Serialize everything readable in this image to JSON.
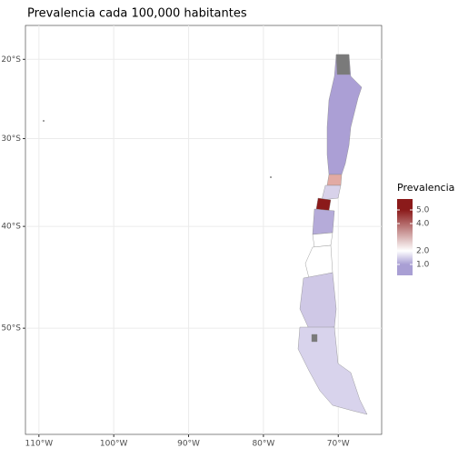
{
  "map": {
    "title": "Prevalencia cada 100,000 habitantes",
    "xlim": [
      -111.8,
      -64.2
    ],
    "ylim": [
      -15.5,
      -58.6
    ],
    "xticks": [
      {
        "value": -110,
        "label": "110°W"
      },
      {
        "value": -100,
        "label": "100°W"
      },
      {
        "value": -90,
        "label": "90°W"
      },
      {
        "value": -80,
        "label": "80°W"
      },
      {
        "value": -70,
        "label": "70°W"
      }
    ],
    "yticks": [
      {
        "value": -20,
        "label": "20°S"
      },
      {
        "value": -30,
        "label": "30°S"
      },
      {
        "value": -40,
        "label": "40°S"
      },
      {
        "value": -50,
        "label": "50°S"
      }
    ],
    "grid": true,
    "legend": {
      "title": "Prevalencia",
      "lim": [
        0.2,
        5.8
      ],
      "ticks": [
        {
          "value": 1,
          "label": "1.0"
        },
        {
          "value": 2,
          "label": "2.0"
        },
        {
          "value": 4,
          "label": "4.0"
        },
        {
          "value": 5,
          "label": "5.0"
        }
      ],
      "colors": [
        "#a99fd4",
        "#ffffff",
        "#8b1a1a"
      ]
    }
  }
}
